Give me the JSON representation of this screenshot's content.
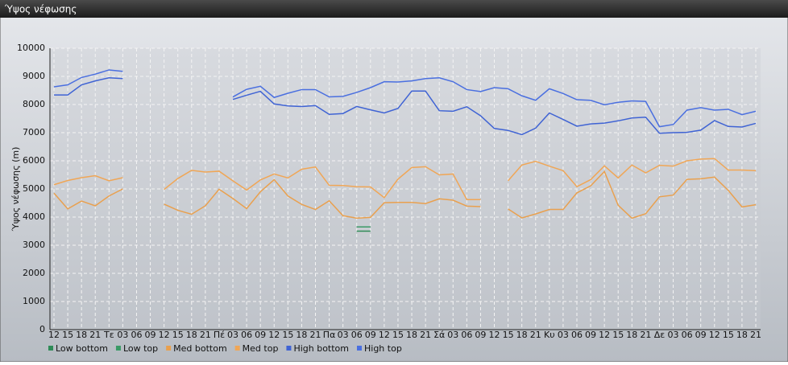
{
  "chart_data": {
    "type": "line",
    "title": "Ύψος νέφωσης",
    "y_label": "Ύψος νέφωσης (m)",
    "categories": [
      "12",
      "15",
      "18",
      "21",
      "Τε",
      "03",
      "06",
      "09",
      "12",
      "15",
      "18",
      "21",
      "Πέ",
      "03",
      "06",
      "09",
      "12",
      "15",
      "18",
      "21",
      "Πα",
      "03",
      "06",
      "09",
      "12",
      "15",
      "18",
      "21",
      "Σά",
      "03",
      "06",
      "09",
      "12",
      "15",
      "18",
      "21",
      "Κυ",
      "03",
      "06",
      "09",
      "12",
      "15",
      "18",
      "21",
      "Δε",
      "03",
      "06",
      "09",
      "12",
      "15",
      "18",
      "21"
    ],
    "ylim": [
      0,
      10000
    ],
    "yticks": [
      0,
      1000,
      2000,
      3000,
      4000,
      5000,
      6000,
      7000,
      8000,
      9000,
      10000
    ],
    "grid": true,
    "legend": "bottom",
    "series": [
      {
        "name": "Low bottom",
        "color": "#2e8b57",
        "values": [
          null,
          null,
          null,
          null,
          null,
          null,
          null,
          null,
          null,
          null,
          null,
          null,
          null,
          null,
          null,
          null,
          null,
          null,
          null,
          null,
          null,
          null,
          3500,
          3500,
          null,
          null,
          null,
          null,
          null,
          null,
          null,
          null,
          null,
          null,
          null,
          null,
          null,
          null,
          null,
          null,
          null,
          null,
          null,
          null,
          null,
          null,
          null,
          null,
          null,
          null,
          null,
          null
        ]
      },
      {
        "name": "Low top",
        "color": "#3a9a66",
        "values": [
          null,
          null,
          null,
          null,
          null,
          null,
          null,
          null,
          null,
          null,
          null,
          null,
          null,
          null,
          null,
          null,
          null,
          null,
          null,
          null,
          null,
          null,
          3650,
          3650,
          null,
          null,
          null,
          null,
          null,
          null,
          null,
          null,
          null,
          null,
          null,
          null,
          null,
          null,
          null,
          null,
          null,
          null,
          null,
          null,
          null,
          null,
          null,
          null,
          null,
          null,
          null,
          null
        ]
      },
      {
        "name": "Med bottom",
        "color": "#e9a04e",
        "values": [
          4850,
          4290,
          4570,
          4400,
          4750,
          5000,
          null,
          null,
          4460,
          4240,
          4100,
          4400,
          4990,
          4660,
          4300,
          4900,
          5330,
          4750,
          4450,
          4270,
          4580,
          4050,
          3960,
          3990,
          4510,
          4520,
          4520,
          4480,
          4650,
          4600,
          4390,
          4370,
          null,
          4290,
          3970,
          4110,
          4270,
          4270,
          4860,
          5110,
          5620,
          4420,
          3960,
          4120,
          4720,
          4780,
          5340,
          5360,
          5420,
          4950,
          4360,
          4440
        ]
      },
      {
        "name": "Med top",
        "color": "#f0a656",
        "values": [
          5150,
          5300,
          5400,
          5470,
          5290,
          5400,
          null,
          null,
          4980,
          5370,
          5660,
          5600,
          5630,
          5290,
          4960,
          5320,
          5530,
          5390,
          5700,
          5780,
          5130,
          5120,
          5080,
          5070,
          4690,
          5350,
          5760,
          5790,
          5500,
          5530,
          4620,
          4620,
          null,
          5290,
          5850,
          5980,
          5810,
          5650,
          5080,
          5330,
          5820,
          5390,
          5850,
          5570,
          5840,
          5810,
          6000,
          6060,
          6080,
          5670,
          5670,
          5650
        ]
      },
      {
        "name": "High bottom",
        "color": "#3f63d4",
        "values": [
          8340,
          8340,
          8700,
          8840,
          8950,
          8920,
          null,
          null,
          null,
          null,
          null,
          null,
          null,
          8180,
          8330,
          8470,
          8020,
          7950,
          7930,
          7960,
          7650,
          7680,
          7930,
          7810,
          7700,
          7860,
          8480,
          8480,
          7780,
          7760,
          7920,
          7600,
          7150,
          7080,
          6930,
          7160,
          7700,
          7470,
          7230,
          7310,
          7340,
          7420,
          7520,
          7550,
          6980,
          7000,
          7010,
          7090,
          7430,
          7220,
          7200,
          7330
        ]
      },
      {
        "name": "High top",
        "color": "#4a6fe0",
        "values": [
          8630,
          8700,
          8960,
          9080,
          9230,
          9180,
          null,
          null,
          null,
          null,
          null,
          null,
          null,
          8270,
          8540,
          8650,
          8250,
          8400,
          8530,
          8530,
          8270,
          8290,
          8430,
          8600,
          8810,
          8800,
          8840,
          8920,
          8950,
          8810,
          8530,
          8460,
          8600,
          8560,
          8310,
          8150,
          8560,
          8390,
          8170,
          8150,
          7990,
          8080,
          8130,
          8110,
          7210,
          7290,
          7800,
          7890,
          7800,
          7830,
          7640,
          7760
        ]
      }
    ]
  }
}
